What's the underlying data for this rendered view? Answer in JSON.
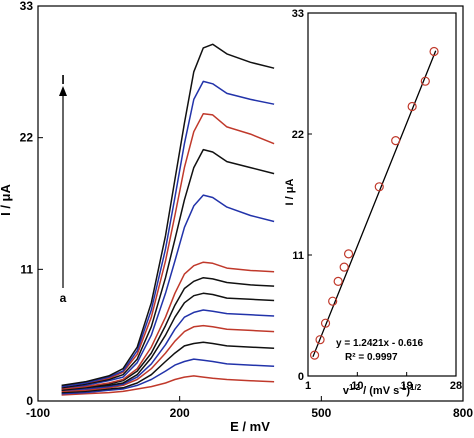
{
  "chart_data": [
    {
      "type": "line",
      "title": "",
      "xlabel": "E / mV",
      "ylabel": "I / μA",
      "xlim": [
        -100,
        800
      ],
      "ylim": [
        0,
        33
      ],
      "x_ticks": [
        "-100",
        "200",
        "500",
        "800"
      ],
      "y_ticks": [
        "0",
        "11",
        "22",
        "33"
      ],
      "arrow_labels": {
        "start": "a",
        "end": "l"
      },
      "x": [
        -50,
        0,
        50,
        80,
        110,
        140,
        170,
        190,
        210,
        230,
        250,
        270,
        300,
        350,
        400
      ],
      "series": [
        {
          "color": "#c0392b",
          "values": [
            0.5,
            0.6,
            0.7,
            0.8,
            1.0,
            1.2,
            1.5,
            1.8,
            2.0,
            2.1,
            2.0,
            1.9,
            1.8,
            1.7,
            1.6
          ]
        },
        {
          "color": "#2233aa",
          "values": [
            0.6,
            0.7,
            0.9,
            1.0,
            1.3,
            1.8,
            2.5,
            3.0,
            3.3,
            3.5,
            3.4,
            3.3,
            3.1,
            3.0,
            2.9
          ]
        },
        {
          "color": "#111111",
          "values": [
            0.7,
            0.8,
            1.0,
            1.1,
            1.5,
            2.2,
            3.3,
            4.0,
            4.6,
            4.8,
            4.9,
            4.8,
            4.6,
            4.5,
            4.4
          ]
        },
        {
          "color": "#c0392b",
          "values": [
            0.8,
            0.9,
            1.1,
            1.3,
            1.8,
            2.7,
            4.0,
            5.0,
            5.8,
            6.2,
            6.3,
            6.2,
            6.0,
            5.9,
            5.8
          ]
        },
        {
          "color": "#2233aa",
          "values": [
            0.9,
            1.0,
            1.2,
            1.4,
            2.0,
            3.1,
            4.7,
            6.0,
            7.0,
            7.4,
            7.6,
            7.5,
            7.3,
            7.2,
            7.1
          ]
        },
        {
          "color": "#111111",
          "values": [
            0.9,
            1.1,
            1.3,
            1.5,
            2.2,
            3.6,
            5.5,
            7.0,
            8.2,
            8.8,
            9.0,
            8.9,
            8.6,
            8.5,
            8.4
          ]
        },
        {
          "color": "#111111",
          "values": [
            1.0,
            1.2,
            1.4,
            1.7,
            2.5,
            4.0,
            6.3,
            8.0,
            9.4,
            10.0,
            10.3,
            10.2,
            9.9,
            9.7,
            9.6
          ]
        },
        {
          "color": "#c0392b",
          "values": [
            1.0,
            1.2,
            1.5,
            1.8,
            2.7,
            4.5,
            7.0,
            9.0,
            10.6,
            11.3,
            11.6,
            11.5,
            11.1,
            10.9,
            10.8
          ]
        },
        {
          "color": "#2233aa",
          "values": [
            1.1,
            1.3,
            1.7,
            2.0,
            3.2,
            5.5,
            9.0,
            11.7,
            14.5,
            16.3,
            17.2,
            17.0,
            16.2,
            15.5,
            15.0
          ]
        },
        {
          "color": "#111111",
          "values": [
            1.1,
            1.4,
            1.8,
            2.2,
            3.5,
            6.2,
            10.3,
            13.5,
            16.8,
            19.5,
            21.0,
            20.8,
            20.0,
            19.5,
            19.0
          ]
        },
        {
          "color": "#c0392b",
          "values": [
            1.2,
            1.5,
            1.9,
            2.4,
            3.9,
            7.0,
            11.7,
            15.5,
            19.5,
            22.5,
            24.0,
            23.9,
            22.9,
            22.3,
            21.5
          ]
        },
        {
          "color": "#2233aa",
          "values": [
            1.2,
            1.5,
            2.0,
            2.5,
            4.2,
            7.6,
            12.7,
            17.0,
            21.5,
            25.2,
            26.7,
            26.5,
            25.7,
            25.2,
            24.8
          ]
        },
        {
          "color": "#111111",
          "values": [
            1.3,
            1.6,
            2.1,
            2.7,
            4.5,
            8.2,
            13.8,
            18.5,
            23.2,
            27.5,
            29.5,
            29.8,
            29.0,
            28.3,
            27.8
          ]
        }
      ]
    },
    {
      "type": "scatter",
      "title": "",
      "xlabel": "v^1/2 / (mV s^-1)^1/2",
      "ylabel": "I / μA",
      "xlim": [
        1,
        28
      ],
      "ylim": [
        0,
        33
      ],
      "x_ticks": [
        "1",
        "10",
        "19",
        "28"
      ],
      "y_ticks": [
        "0",
        "11",
        "22",
        "33"
      ],
      "points": [
        {
          "x": 2.2,
          "y": 1.9
        },
        {
          "x": 3.2,
          "y": 3.3
        },
        {
          "x": 4.2,
          "y": 4.8
        },
        {
          "x": 5.5,
          "y": 6.8
        },
        {
          "x": 6.5,
          "y": 8.6
        },
        {
          "x": 7.6,
          "y": 9.9
        },
        {
          "x": 8.4,
          "y": 11.1
        },
        {
          "x": 14.0,
          "y": 17.2
        },
        {
          "x": 17.0,
          "y": 21.4
        },
        {
          "x": 20.0,
          "y": 24.5
        },
        {
          "x": 22.4,
          "y": 26.8
        },
        {
          "x": 24.0,
          "y": 29.5
        }
      ],
      "fit": {
        "slope": 1.2421,
        "intercept": -0.616
      },
      "equation_text": "y = 1.2421x  - 0.616",
      "r2_text": "R² = 0.9997"
    }
  ]
}
